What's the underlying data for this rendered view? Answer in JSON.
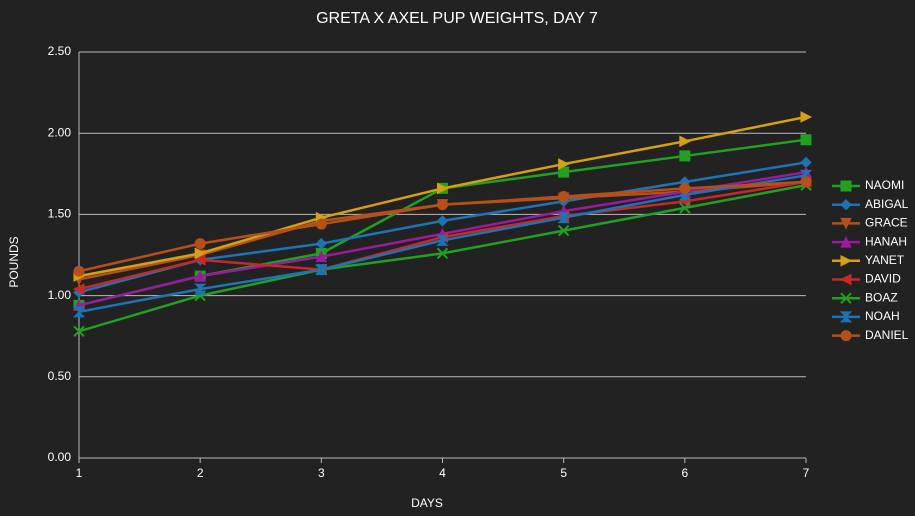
{
  "chart_data": {
    "type": "line",
    "title": "GRETA X AXEL PUP WEIGHTS, DAY 7",
    "x_label": "DAYS",
    "y_label": "POUNDS",
    "x": [
      1,
      2,
      3,
      4,
      5,
      6,
      7
    ],
    "xlim": [
      1,
      7
    ],
    "xticks": [
      1,
      2,
      3,
      4,
      5,
      6,
      7
    ],
    "ylim": [
      0,
      2.5
    ],
    "yticks": [
      {
        "value": 0,
        "label": "0.00"
      },
      {
        "value": 0.5,
        "label": "0.50"
      },
      {
        "value": 1,
        "label": "1.00"
      },
      {
        "value": 1.5,
        "label": "1.50"
      },
      {
        "value": 2,
        "label": "2.00"
      },
      {
        "value": 2.5,
        "label": "2.50"
      }
    ],
    "grid": true,
    "legend": "right",
    "series": [
      {
        "name": "NAOMI",
        "color": "#22a022",
        "marker": "square",
        "values": [
          0.94,
          1.12,
          1.26,
          1.66,
          1.76,
          1.86,
          1.96
        ]
      },
      {
        "name": "ABIGAL",
        "color": "#1f72b4",
        "marker": "diamond",
        "values": [
          1.02,
          1.22,
          1.32,
          1.46,
          1.58,
          1.7,
          1.82
        ]
      },
      {
        "name": "GRACE",
        "color": "#b5501a",
        "marker": "triangle-down",
        "values": [
          1.1,
          1.25,
          1.46,
          1.56,
          1.6,
          1.64,
          1.7
        ]
      },
      {
        "name": "HANAH",
        "color": "#9a1aa0",
        "marker": "triangle-up",
        "values": [
          0.94,
          1.12,
          1.24,
          1.38,
          1.52,
          1.64,
          1.76
        ]
      },
      {
        "name": "YANET",
        "color": "#d4a017",
        "marker": "triangle-right",
        "values": [
          1.12,
          1.26,
          1.48,
          1.66,
          1.81,
          1.95,
          2.1
        ]
      },
      {
        "name": "DAVID",
        "color": "#c82828",
        "marker": "triangle-left",
        "values": [
          1.04,
          1.22,
          1.16,
          1.36,
          1.49,
          1.58,
          1.7
        ]
      },
      {
        "name": "BOAZ",
        "color": "#22a022",
        "marker": "cross",
        "values": [
          0.78,
          1.0,
          1.16,
          1.26,
          1.4,
          1.54,
          1.68
        ]
      },
      {
        "name": "NOAH",
        "color": "#1f72b4",
        "marker": "hourglass",
        "values": [
          0.9,
          1.04,
          1.16,
          1.34,
          1.48,
          1.62,
          1.74
        ]
      },
      {
        "name": "DANIEL",
        "color": "#b5501a",
        "marker": "circle",
        "values": [
          1.15,
          1.32,
          1.44,
          1.56,
          1.61,
          1.66,
          1.7
        ]
      }
    ]
  }
}
